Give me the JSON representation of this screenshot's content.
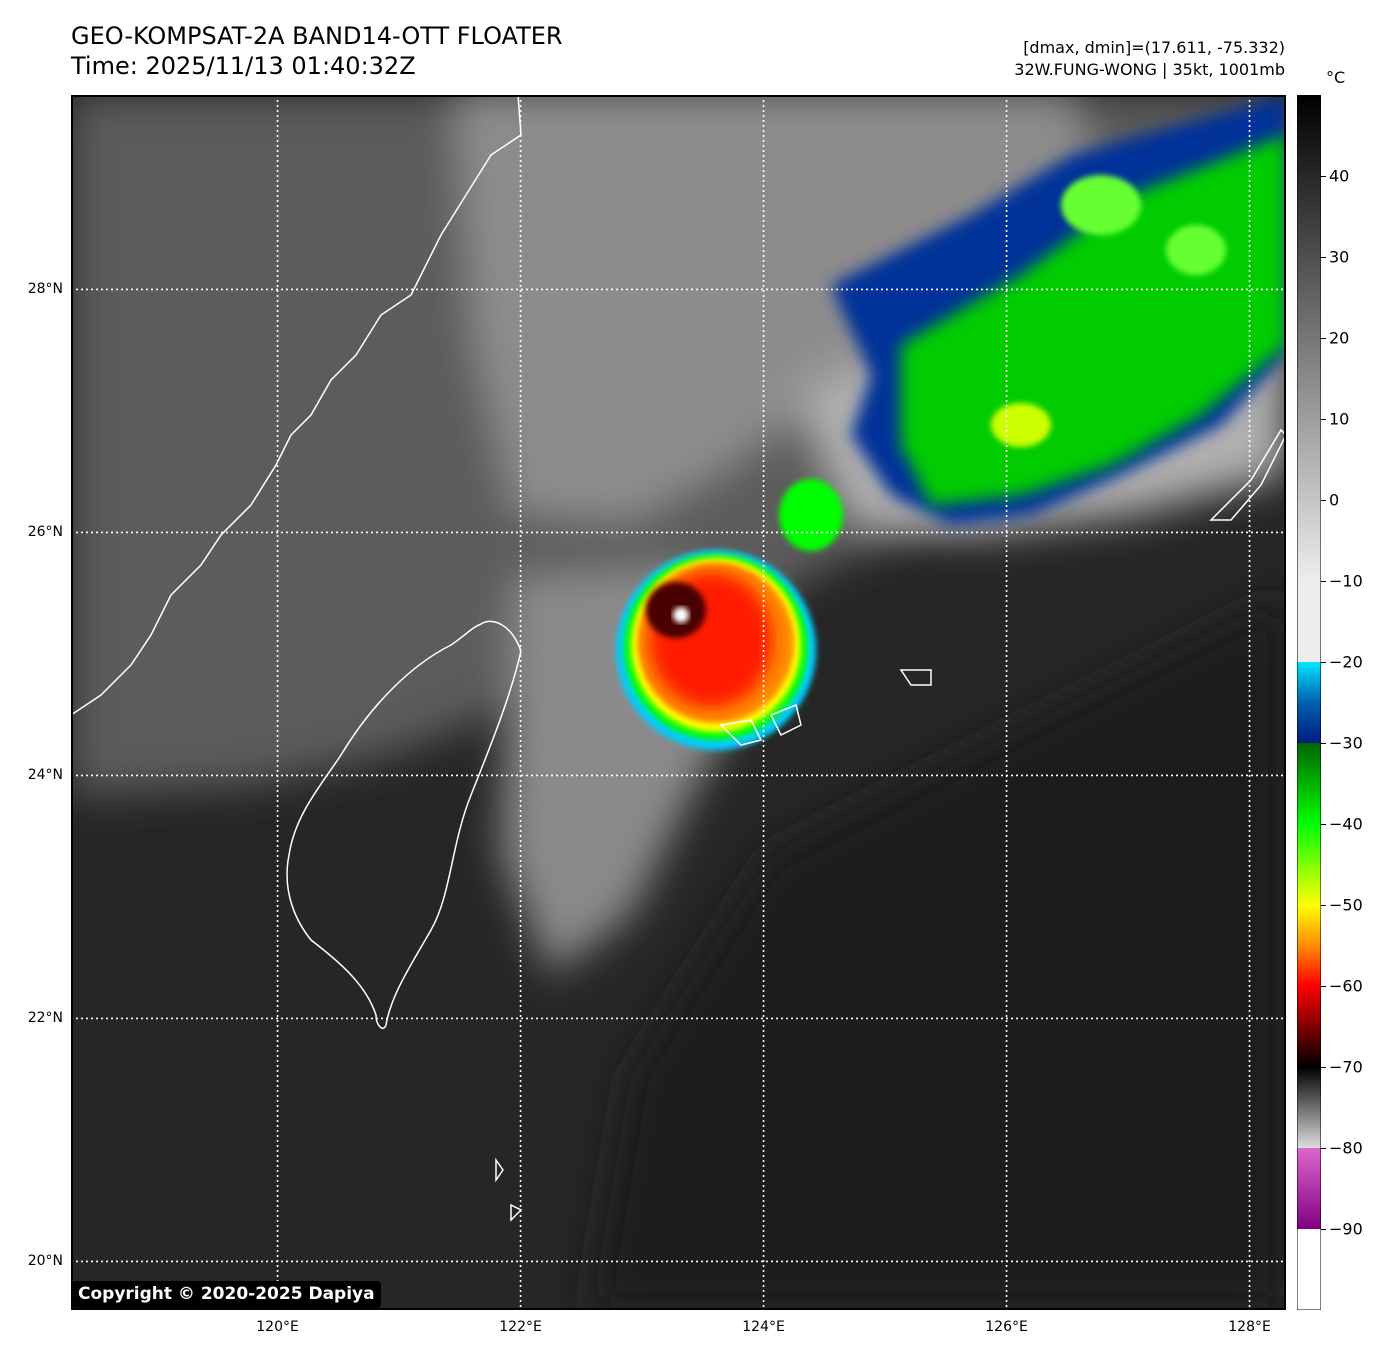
{
  "header": {
    "title_line1": "GEO-KOMPSAT-2A BAND14-OTT FLOATER",
    "title_line2": "Time: 2025/11/13 01:40:32Z",
    "info_line1": "[dmax, dmin]=(17.611, -75.332)",
    "info_line2": "32W.FUNG-WONG | 35kt, 1001mb"
  },
  "map": {
    "extent": {
      "lon_min": 118.3,
      "lon_max": 128.3,
      "lat_min": 19.6,
      "lat_max": 29.6
    },
    "lat_ticks": [
      {
        "value": 28,
        "label": "28°N"
      },
      {
        "value": 26,
        "label": "26°N"
      },
      {
        "value": 24,
        "label": "24°N"
      },
      {
        "value": 22,
        "label": "22°N"
      },
      {
        "value": 20,
        "label": "20°N"
      }
    ],
    "lon_ticks": [
      {
        "value": 120,
        "label": "120°E"
      },
      {
        "value": 122,
        "label": "122°E"
      },
      {
        "value": 124,
        "label": "124°E"
      },
      {
        "value": 126,
        "label": "126°E"
      },
      {
        "value": 128,
        "label": "128°E"
      }
    ],
    "storm_center": {
      "lon": 123.3,
      "lat": 25.3
    },
    "copyright": "Copyright © 2020-2025 Dapiya"
  },
  "colorbar": {
    "unit": "°C",
    "min": -100,
    "max": 50,
    "ticks": [
      {
        "value": 40,
        "label": "40"
      },
      {
        "value": 30,
        "label": "30"
      },
      {
        "value": 20,
        "label": "20"
      },
      {
        "value": 10,
        "label": "10"
      },
      {
        "value": 0,
        "label": "0"
      },
      {
        "value": -10,
        "label": "−10"
      },
      {
        "value": -20,
        "label": "−20"
      },
      {
        "value": -30,
        "label": "−30"
      },
      {
        "value": -40,
        "label": "−40"
      },
      {
        "value": -50,
        "label": "−50"
      },
      {
        "value": -60,
        "label": "−60"
      },
      {
        "value": -70,
        "label": "−70"
      },
      {
        "value": -80,
        "label": "−80"
      },
      {
        "value": -90,
        "label": "−90"
      }
    ],
    "colors": {
      "warm_black": "#000000",
      "cloud_gray": "#c8c8c8",
      "cyan": "#00e5ff",
      "navy": "#001a80",
      "green": "#00ff00",
      "yellow": "#ffff00",
      "orange": "#ff8c00",
      "red": "#ff0000",
      "dark_red": "#5a0000",
      "magenta": "#cc44aa",
      "white": "#ffffff"
    }
  }
}
